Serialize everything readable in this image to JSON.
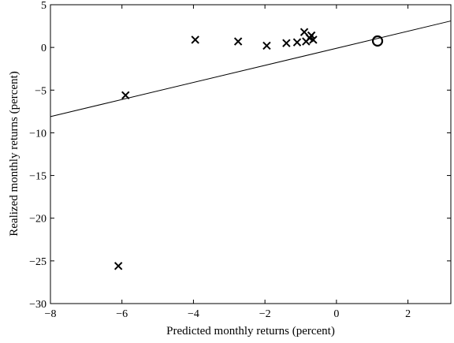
{
  "chart_data": {
    "type": "scatter",
    "title": "",
    "xlabel": "Predicted monthly returns (percent)",
    "ylabel": "Realized monthly returns (percent)",
    "xlim": [
      -8,
      3.2
    ],
    "ylim": [
      -30,
      5
    ],
    "xticks": [
      -8,
      -6,
      -4,
      -2,
      0,
      2
    ],
    "yticks": [
      5,
      0,
      -5,
      -10,
      -15,
      -20,
      -25,
      -30
    ],
    "x_tick_labels": [
      "−8",
      "−6",
      "−4",
      "−2",
      "0",
      "2"
    ],
    "y_tick_labels": [
      "5",
      "0",
      "−5",
      "−10",
      "−15",
      "−20",
      "−25",
      "−30"
    ],
    "grid": false,
    "series": [
      {
        "marker": "x",
        "points": [
          {
            "x": -6.1,
            "y": -25.6
          },
          {
            "x": -5.9,
            "y": -5.6
          },
          {
            "x": -3.95,
            "y": 0.9
          },
          {
            "x": -2.75,
            "y": 0.7
          },
          {
            "x": -1.95,
            "y": 0.2
          },
          {
            "x": -1.4,
            "y": 0.5
          },
          {
            "x": -1.1,
            "y": 0.6
          },
          {
            "x": -0.9,
            "y": 1.8
          },
          {
            "x": -0.85,
            "y": 0.7
          },
          {
            "x": -0.75,
            "y": 1.1
          },
          {
            "x": -0.7,
            "y": 1.4
          },
          {
            "x": -0.65,
            "y": 0.9
          }
        ]
      },
      {
        "marker": "o",
        "points": [
          {
            "x": 1.15,
            "y": 0.75
          }
        ]
      }
    ],
    "fit_line": {
      "x": [
        -8,
        3.2
      ],
      "y": [
        -8.1,
        3.1
      ]
    }
  }
}
